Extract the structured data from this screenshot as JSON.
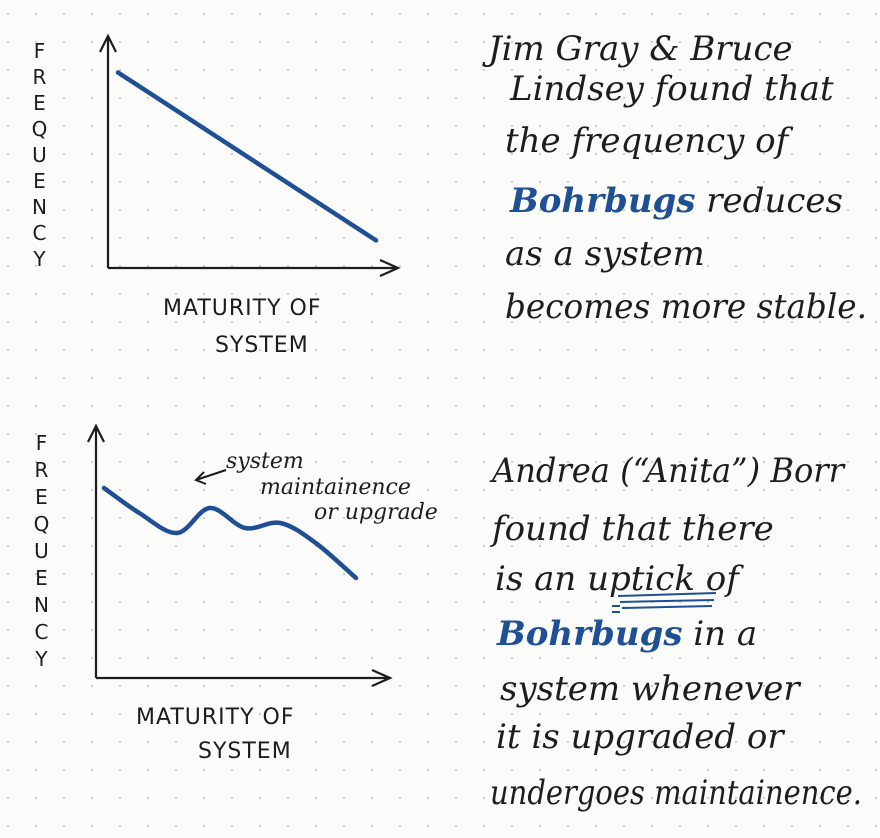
{
  "colors": {
    "ink": "#1d1d1d",
    "accent_blue": "#1f4f95",
    "paper": "#fbfbf9",
    "grid_dot": "#c9c9c9"
  },
  "chart_data": [
    {
      "type": "line",
      "title": "",
      "xlabel": [
        "MATURITY OF",
        "SYSTEM"
      ],
      "ylabel": "FREQUENCY",
      "x": [
        0,
        1
      ],
      "series": [
        {
          "values": [
            0.85,
            0.12
          ]
        }
      ],
      "xlim": [
        0,
        1
      ],
      "ylim": [
        0,
        1
      ],
      "grid": false,
      "annotations": []
    },
    {
      "type": "line",
      "title": "",
      "xlabel": [
        "MATURITY OF",
        "SYSTEM"
      ],
      "ylabel": "FREQUENCY",
      "x": [
        0,
        0.14,
        0.29,
        0.42,
        0.56,
        0.7,
        0.84,
        1
      ],
      "series": [
        {
          "values": [
            0.76,
            0.66,
            0.58,
            0.68,
            0.6,
            0.62,
            0.54,
            0.4
          ]
        }
      ],
      "xlim": [
        0,
        1
      ],
      "ylim": [
        0,
        1
      ],
      "grid": false,
      "annotations": [
        {
          "lines": [
            "system",
            "maintainence",
            "or upgrade"
          ],
          "at_x": 0.42
        }
      ]
    }
  ],
  "notes": {
    "top": {
      "lines": [
        [
          "Jim Gray & Bruce"
        ],
        [
          "Lindsey found that"
        ],
        [
          "the frequency of"
        ],
        [
          "Bohrbugs",
          " reduces"
        ],
        [
          "as a system"
        ],
        [
          "becomes more stable."
        ]
      ]
    },
    "bottom": {
      "lines": [
        [
          "Andrea (“Anita”) Borr"
        ],
        [
          "found that there"
        ],
        [
          "is an ",
          "uptick",
          " of"
        ],
        [
          "Bohrbugs",
          " in a"
        ],
        [
          "system whenever"
        ],
        [
          "it is upgraded or"
        ],
        [
          "undergoes maintainence."
        ]
      ]
    }
  }
}
